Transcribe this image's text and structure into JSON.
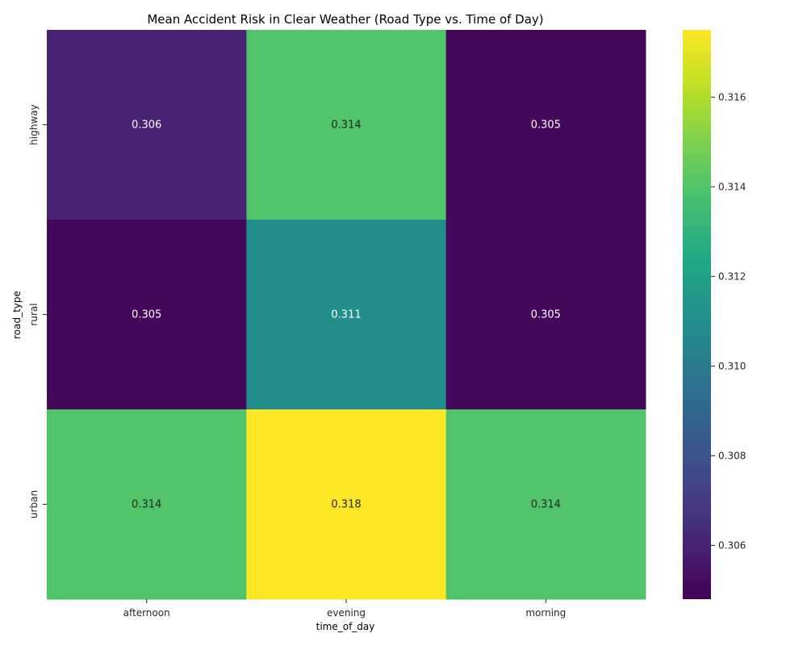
{
  "chart_data": {
    "type": "heatmap",
    "title": "Mean Accident Risk in Clear Weather (Road Type vs. Time of Day)",
    "xlabel": "time_of_day",
    "ylabel": "road_type",
    "x_categories": [
      "afternoon",
      "evening",
      "morning"
    ],
    "y_categories": [
      "highway",
      "rural",
      "urban"
    ],
    "values": [
      [
        0.306,
        0.314,
        0.305
      ],
      [
        0.305,
        0.311,
        0.305
      ],
      [
        0.314,
        0.318,
        0.314
      ]
    ],
    "cell_labels": [
      [
        "0.306",
        "0.314",
        "0.305"
      ],
      [
        "0.305",
        "0.311",
        "0.305"
      ],
      [
        "0.314",
        "0.318",
        "0.314"
      ]
    ],
    "colormap": "viridis",
    "color_range": [
      0.3048,
      0.3175
    ],
    "colorbar_ticks": [
      0.306,
      0.308,
      0.31,
      0.312,
      0.314,
      0.316
    ],
    "colorbar_tick_labels": [
      "0.306",
      "0.308",
      "0.310",
      "0.312",
      "0.314",
      "0.316"
    ],
    "grid": false,
    "legend": "colorbar-right"
  }
}
